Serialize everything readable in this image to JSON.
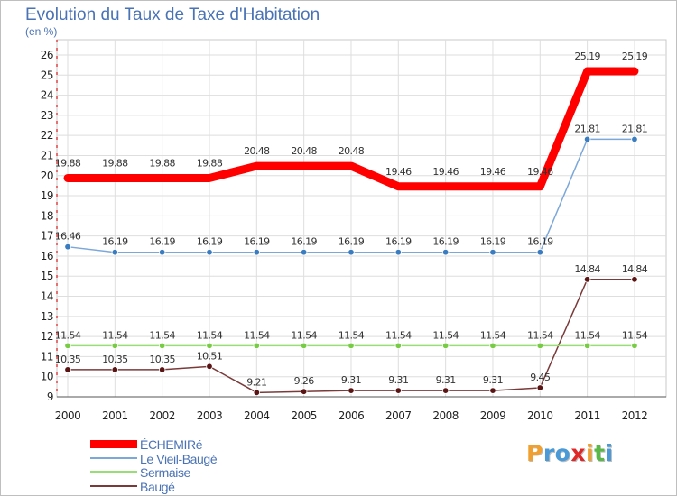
{
  "chart_data": {
    "type": "line",
    "title": "Evolution du Taux de Taxe d'Habitation",
    "subtitle": "(en %)",
    "x": [
      "2000",
      "2001",
      "2002",
      "2003",
      "2004",
      "2005",
      "2006",
      "2007",
      "2008",
      "2009",
      "2010",
      "2011",
      "2012"
    ],
    "ylim": [
      9,
      26
    ],
    "yticks": [
      9,
      10,
      11,
      12,
      13,
      14,
      15,
      16,
      17,
      18,
      19,
      20,
      21,
      22,
      23,
      24,
      25,
      26
    ],
    "grid": true,
    "series": [
      {
        "name": "ÉCHEMIRé",
        "color": "#ff0000",
        "values": [
          19.88,
          19.88,
          19.88,
          19.88,
          20.48,
          20.48,
          20.48,
          19.46,
          19.46,
          19.46,
          19.46,
          25.19,
          25.19
        ]
      },
      {
        "name": "Le Vieil-Baugé",
        "color": "#7ba7d9",
        "marker": "#3a7cc0",
        "values": [
          16.46,
          16.19,
          16.19,
          16.19,
          16.19,
          16.19,
          16.19,
          16.19,
          16.19,
          16.19,
          16.19,
          21.81,
          21.81
        ]
      },
      {
        "name": "Sermaise",
        "color": "#99dd77",
        "marker": "#77cc44",
        "values": [
          11.54,
          11.54,
          11.54,
          11.54,
          11.54,
          11.54,
          11.54,
          11.54,
          11.54,
          11.54,
          11.54,
          11.54,
          11.54
        ]
      },
      {
        "name": "Baugé",
        "color": "#7a3a3a",
        "marker": "#5a1414",
        "values": [
          10.35,
          10.35,
          10.35,
          10.51,
          9.21,
          9.26,
          9.31,
          9.31,
          9.31,
          9.31,
          9.45,
          14.84,
          14.84
        ]
      }
    ]
  },
  "logo": {
    "letters": [
      {
        "ch": "P",
        "color": "#f0a030"
      },
      {
        "ch": "r",
        "color": "#4a9ad8"
      },
      {
        "ch": "o",
        "color": "#4a9ad8"
      },
      {
        "ch": "x",
        "color": "#e02828"
      },
      {
        "ch": "i",
        "color": "#f0a030"
      },
      {
        "ch": "t",
        "color": "#5ab848"
      },
      {
        "ch": "i",
        "color": "#4a9ad8"
      }
    ]
  }
}
